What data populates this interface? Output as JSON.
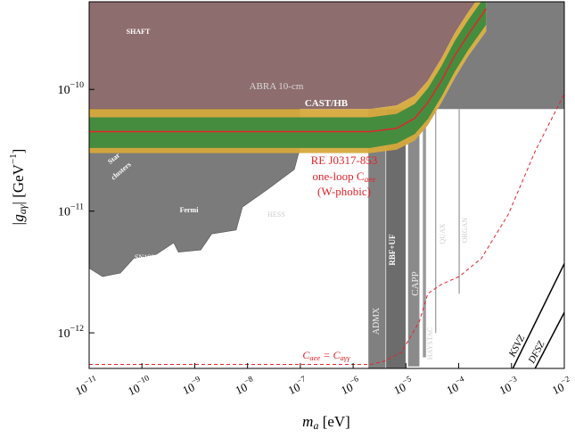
{
  "chart_data": {
    "type": "exclusion",
    "xscale": "log",
    "yscale": "log",
    "xlabel": {
      "parts": [
        "m",
        "a",
        " [eV]"
      ]
    },
    "ylabel": {
      "parts": [
        "|g",
        "aγ",
        "| [GeV",
        "−1",
        "]"
      ]
    },
    "xlim": [
      1e-11,
      0.01
    ],
    "ylim": [
      5.1e-13,
      5.25e-10
    ],
    "xticks": [
      {
        "value": 1e-11,
        "label": "10",
        "exponent": "−11"
      },
      {
        "value": 1e-10,
        "label": "10",
        "exponent": "−10"
      },
      {
        "value": 1e-09,
        "label": "10",
        "exponent": "−9"
      },
      {
        "value": 1e-08,
        "label": "10",
        "exponent": "−8"
      },
      {
        "value": 1e-07,
        "label": "10",
        "exponent": "−7"
      },
      {
        "value": 1e-06,
        "label": "10",
        "exponent": "−6"
      },
      {
        "value": 1e-05,
        "label": "10",
        "exponent": "−5"
      },
      {
        "value": 0.0001,
        "label": "10",
        "exponent": "−4"
      },
      {
        "value": 0.001,
        "label": "10",
        "exponent": "−3"
      },
      {
        "value": 0.01,
        "label": "10",
        "exponent": "−2"
      }
    ],
    "yticks": [
      {
        "value": 1e-10,
        "label": "10",
        "exponent": "−10"
      },
      {
        "value": 1e-11,
        "label": "10",
        "exponent": "−11"
      },
      {
        "value": 1e-12,
        "label": "10",
        "exponent": "−12"
      }
    ],
    "top_region_color": "#8e6d6e",
    "right_region_color": "#7d7d7d",
    "regions": [
      {
        "color": "#7b7b7b",
        "x": [
          1e-11,
          1e-11,
          1.8e-11,
          3.9e-11,
          7e-11,
          1.85e-10,
          4e-10,
          4.9e-10,
          1.3e-09,
          2.1e-09,
          6.1e-09,
          8e-09,
          2.4e-08,
          7.7e-08,
          9.7e-08,
          9.7e-08
        ],
        "y": [
          6.9e-11,
          3.4e-12,
          2.9e-12,
          3.1e-12,
          4.1e-12,
          4.4e-12,
          5.5e-12,
          4.6e-12,
          4.8e-12,
          6.5e-12,
          7e-12,
          1.08e-11,
          1.51e-11,
          2.2e-11,
          3.2e-11,
          6.9e-11
        ]
      }
    ],
    "strips": [
      {
        "color": "#808080",
        "x": [
          1.94e-06,
          4.1e-06
        ],
        "y": [
          5.1e-13,
          6.9e-11
        ]
      },
      {
        "color": "#6c6c6c",
        "x": [
          4.2e-06,
          9.9e-06
        ],
        "y": [
          5.1e-13,
          6.9e-11
        ]
      },
      {
        "color": "#8a8a8a",
        "x": [
          1.1e-05,
          1.8e-05
        ],
        "y": [
          5.3e-13,
          6.9e-11
        ]
      },
      {
        "color": "#9a9a9a",
        "x": [
          2.1e-05,
          2.4e-05
        ],
        "y": [
          6.3e-13,
          6.9e-11
        ]
      },
      {
        "color": "#8c8c8c",
        "x": [
          3.6e-05,
          3.7e-05
        ],
        "y": [
          1e-12,
          6.9e-11
        ]
      },
      {
        "color": "#8c8c8c",
        "x": [
          0.0001,
          0.000104
        ],
        "y": [
          2.1e-12,
          6.9e-11
        ]
      }
    ],
    "bands": [
      {
        "color": "#d6a93c",
        "x": [
          1e-11,
          2.1e-06,
          6.7e-06,
          1.47e-05,
          2.6e-05,
          4.7e-05,
          8.4e-05,
          0.00015,
          0.00033
        ],
        "upper": [
          6.9e-11,
          6.9e-11,
          7.4e-11,
          8.9e-11,
          1.18e-10,
          1.8e-10,
          2.9e-10,
          4.3e-10,
          6.9e-10
        ],
        "lower": [
          3e-11,
          3e-11,
          3.2e-11,
          3.8e-11,
          5.1e-11,
          7.8e-11,
          1.24e-10,
          1.87e-10,
          3e-10
        ]
      },
      {
        "color": "#3e8a3e",
        "x": [
          1e-11,
          2.1e-06,
          6.7e-06,
          1.47e-05,
          2.6e-05,
          4.7e-05,
          8.4e-05,
          0.00015,
          0.00033
        ],
        "upper": [
          5.9e-11,
          5.9e-11,
          6.3e-11,
          7.6e-11,
          1.02e-10,
          1.55e-10,
          2.5e-10,
          3.7e-10,
          6e-10
        ],
        "lower": [
          3.3e-11,
          3.3e-11,
          3.6e-11,
          4.3e-11,
          5.7e-11,
          8.7e-11,
          1.4e-10,
          2.1e-10,
          3.4e-10
        ]
      }
    ],
    "series": [
      {
        "color": "#e3242b",
        "dash": false,
        "x": [
          1e-11,
          2.1e-06,
          6.7e-06,
          1.47e-05,
          2.6e-05,
          4.7e-05,
          8.4e-05,
          0.00015,
          0.00033
        ],
        "values": [
          4.5e-11,
          4.5e-11,
          4.8e-11,
          5.8e-11,
          7.8e-11,
          1.18e-10,
          1.9e-10,
          2.8e-10,
          4.6e-10
        ]
      },
      {
        "color": "#e3242b",
        "dash": true,
        "x": [
          1e-11,
          2.1e-06,
          3.7e-06,
          8.2e-06,
          1.8e-05,
          2.6e-05,
          4.7e-05,
          0.000102,
          0.00027,
          0.00087,
          0.0028,
          0.01
        ],
        "values": [
          5.5e-13,
          5.5e-13,
          5.8e-13,
          6.9e-13,
          1.24e-12,
          2.1e-12,
          2.5e-12,
          2.9e-12,
          4.1e-12,
          9.4e-12,
          3.1e-11,
          9.2e-11
        ]
      },
      {
        "color": "#000000",
        "dash": false,
        "x": [
          0.00106,
          0.01
        ],
        "values": [
          5.1e-13,
          3.7e-12
        ]
      },
      {
        "color": "#000000",
        "dash": false,
        "x": [
          0.0028,
          0.01
        ],
        "values": [
          5.1e-13,
          1.47e-12
        ]
      }
    ],
    "annotations": [
      {
        "parts": [
          "SHAFT"
        ]
      },
      {
        "parts": [
          "ABRA 10-cm"
        ]
      },
      {
        "parts": [
          "CAST/HB"
        ]
      },
      {
        "parts": [
          "Star"
        ]
      },
      {
        "parts": [
          "clusters"
        ]
      },
      {
        "parts": [
          "Fermi"
        ]
      },
      {
        "parts": [
          "HESS"
        ]
      },
      {
        "parts": [
          "SN1987A"
        ]
      },
      {
        "parts": [
          "RE J0317-853"
        ]
      },
      {
        "parts": [
          "one-loop C",
          "aee"
        ]
      },
      {
        "parts": [
          "(W-phobic)"
        ]
      },
      {
        "parts": [
          "C",
          "aee",
          " = C",
          "aγγ"
        ]
      },
      {
        "parts": [
          "ADMX"
        ]
      },
      {
        "parts": [
          "RBF+UF"
        ]
      },
      {
        "parts": [
          "CAPP"
        ]
      },
      {
        "parts": [
          "HAYSTAC"
        ]
      },
      {
        "parts": [
          "QUAX"
        ]
      },
      {
        "parts": [
          "ORGAN"
        ]
      },
      {
        "parts": [
          "KSVZ"
        ]
      },
      {
        "parts": [
          "DFSZ"
        ]
      }
    ]
  }
}
